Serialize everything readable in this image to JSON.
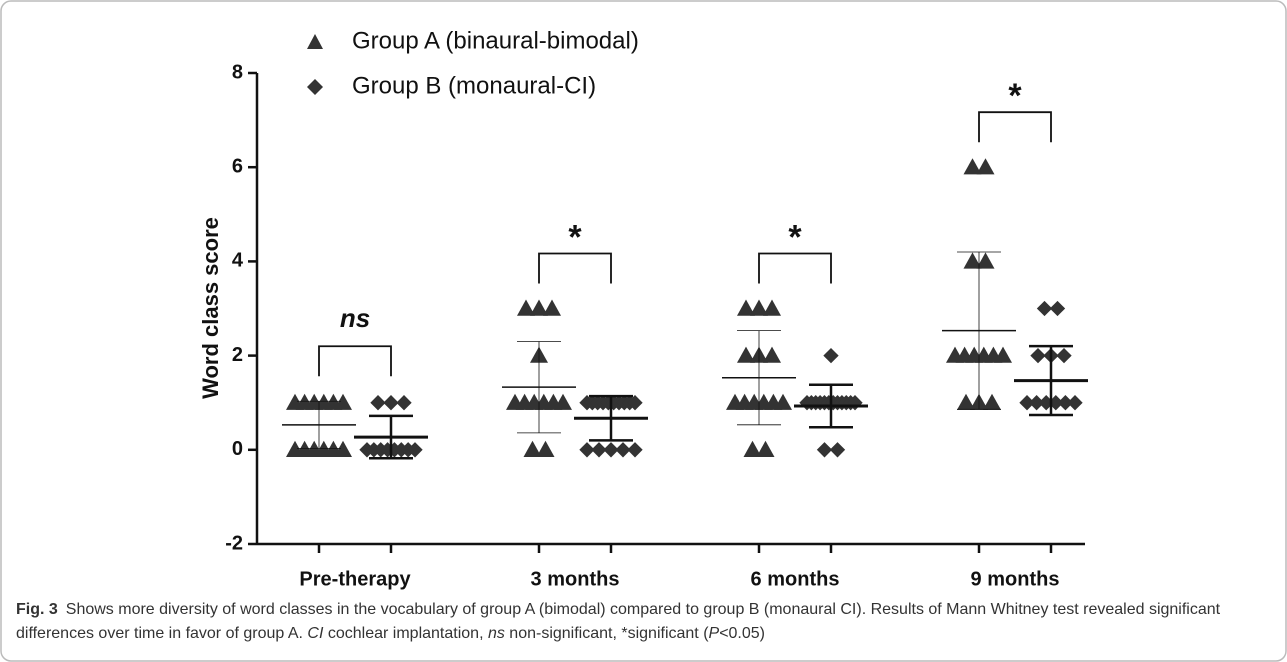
{
  "chart_data": {
    "type": "dot",
    "y_label": "Word class score",
    "categories": [
      "Pre-therapy",
      "3 months",
      "6 months",
      "9 months"
    ],
    "ylim": [
      -2,
      8
    ],
    "yticks": [
      -2,
      0,
      2,
      4,
      6,
      8
    ],
    "significance": [
      "ns",
      "*",
      "*",
      "*"
    ],
    "series": [
      {
        "name": "Group A (binaural-bimodal)",
        "marker": "triangle",
        "color": "#333333",
        "points": [
          [
            0,
            0,
            0,
            0,
            0,
            0,
            1,
            1,
            1,
            1,
            1,
            1
          ],
          [
            0,
            0,
            1,
            1,
            1,
            1,
            1,
            1,
            2,
            3,
            3,
            3
          ],
          [
            0,
            0,
            1,
            1,
            1,
            1,
            1,
            1,
            2,
            2,
            2,
            3,
            3,
            3
          ],
          [
            1,
            1,
            1,
            2,
            2,
            2,
            2,
            2,
            2,
            4,
            4,
            6,
            6
          ]
        ],
        "mean": [
          0.53,
          1.33,
          1.53,
          2.53
        ],
        "sd": [
          0.5,
          0.97,
          1.0,
          1.67
        ]
      },
      {
        "name": "Group B (monaural-CI)",
        "marker": "diamond",
        "color": "#333333",
        "points": [
          [
            0,
            0,
            0,
            0,
            0,
            0,
            0,
            0,
            1,
            1,
            1
          ],
          [
            0,
            0,
            0,
            0,
            0,
            1,
            1,
            1,
            1,
            1,
            1,
            1,
            1,
            1,
            1
          ],
          [
            0,
            0,
            1,
            1,
            1,
            1,
            1,
            1,
            1,
            1,
            1,
            1,
            1,
            1,
            2
          ],
          [
            1,
            1,
            1,
            1,
            1,
            1,
            2,
            2,
            2,
            3,
            3
          ]
        ],
        "mean": [
          0.27,
          0.67,
          0.93,
          1.47
        ],
        "sd": [
          0.45,
          0.47,
          0.45,
          0.73
        ]
      }
    ]
  },
  "caption": {
    "label": "Fig. 3",
    "parts": [
      "Shows more diversity of word classes in the vocabulary of group A (bimodal) compared to group B (monaural CI). Results of Mann Whitney test revealed significant differences over time in favor of group A. ",
      "CI",
      " cochlear implantation, ",
      "ns",
      " non-significant, *significant (",
      "P",
      "<0.05)"
    ]
  }
}
